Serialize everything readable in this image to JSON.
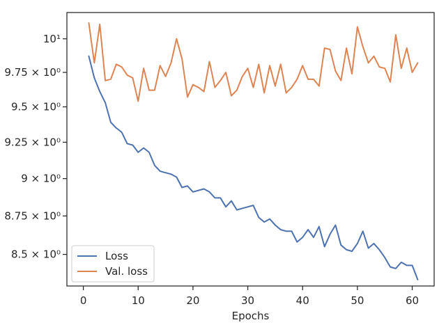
{
  "chart_data": {
    "type": "line",
    "title": "",
    "xlabel": "Epochs",
    "ylabel": "",
    "yscale": "log",
    "xlim": [
      -3,
      64
    ],
    "ylim": [
      8.3,
      10.2
    ],
    "grid": false,
    "legend_position": "bottom-left",
    "x_ticks": [
      {
        "value": 0,
        "label": "0"
      },
      {
        "value": 10,
        "label": "10"
      },
      {
        "value": 20,
        "label": "20"
      },
      {
        "value": 30,
        "label": "30"
      },
      {
        "value": 40,
        "label": "40"
      },
      {
        "value": 50,
        "label": "50"
      },
      {
        "value": 60,
        "label": "60"
      }
    ],
    "y_ticks": [
      {
        "value": 8.5,
        "label": "8.5 × 10⁰"
      },
      {
        "value": 8.75,
        "label": "8.75 × 10⁰"
      },
      {
        "value": 9.0,
        "label": "9 × 10⁰"
      },
      {
        "value": 9.25,
        "label": "9.25 × 10⁰"
      },
      {
        "value": 9.5,
        "label": "9.5 × 10⁰"
      },
      {
        "value": 9.75,
        "label": "9.75 × 10⁰"
      },
      {
        "value": 10.0,
        "label": "10¹"
      }
    ],
    "x": [
      1,
      2,
      3,
      4,
      5,
      6,
      7,
      8,
      9,
      10,
      11,
      12,
      13,
      14,
      15,
      16,
      17,
      18,
      19,
      20,
      21,
      22,
      23,
      24,
      25,
      26,
      27,
      28,
      29,
      30,
      31,
      32,
      33,
      34,
      35,
      36,
      37,
      38,
      39,
      40,
      41,
      42,
      43,
      44,
      45,
      46,
      47,
      48,
      49,
      50,
      51,
      52,
      53,
      54,
      55,
      56,
      57,
      58,
      59,
      60,
      61
    ],
    "series": [
      {
        "name": "Loss",
        "color": "#4c72b0",
        "values": [
          9.87,
          9.71,
          9.61,
          9.53,
          9.39,
          9.35,
          9.32,
          9.24,
          9.23,
          9.18,
          9.21,
          9.18,
          9.09,
          9.05,
          9.04,
          9.03,
          9.01,
          8.94,
          8.95,
          8.91,
          8.92,
          8.93,
          8.91,
          8.87,
          8.87,
          8.81,
          8.85,
          8.79,
          8.8,
          8.81,
          8.82,
          8.74,
          8.71,
          8.73,
          8.69,
          8.66,
          8.65,
          8.65,
          8.58,
          8.61,
          8.66,
          8.61,
          8.68,
          8.55,
          8.63,
          8.69,
          8.56,
          8.53,
          8.52,
          8.57,
          8.65,
          8.54,
          8.57,
          8.53,
          8.48,
          8.42,
          8.41,
          8.45,
          8.43,
          8.43,
          8.34
        ]
      },
      {
        "name": "Val. loss",
        "color": "#dd8452",
        "values": [
          10.12,
          9.82,
          10.11,
          9.69,
          9.7,
          9.81,
          9.79,
          9.73,
          9.71,
          9.54,
          9.78,
          9.62,
          9.62,
          9.8,
          9.72,
          9.82,
          10.0,
          9.85,
          9.57,
          9.66,
          9.64,
          9.61,
          9.83,
          9.64,
          9.69,
          9.75,
          9.58,
          9.62,
          9.72,
          9.78,
          9.64,
          9.81,
          9.6,
          9.8,
          9.65,
          9.81,
          9.6,
          9.64,
          9.7,
          9.8,
          9.7,
          9.7,
          9.65,
          9.93,
          9.92,
          9.76,
          9.69,
          9.93,
          9.74,
          10.09,
          9.94,
          9.82,
          9.87,
          9.79,
          9.78,
          9.68,
          10.03,
          9.78,
          9.93,
          9.75,
          9.82
        ]
      }
    ]
  }
}
